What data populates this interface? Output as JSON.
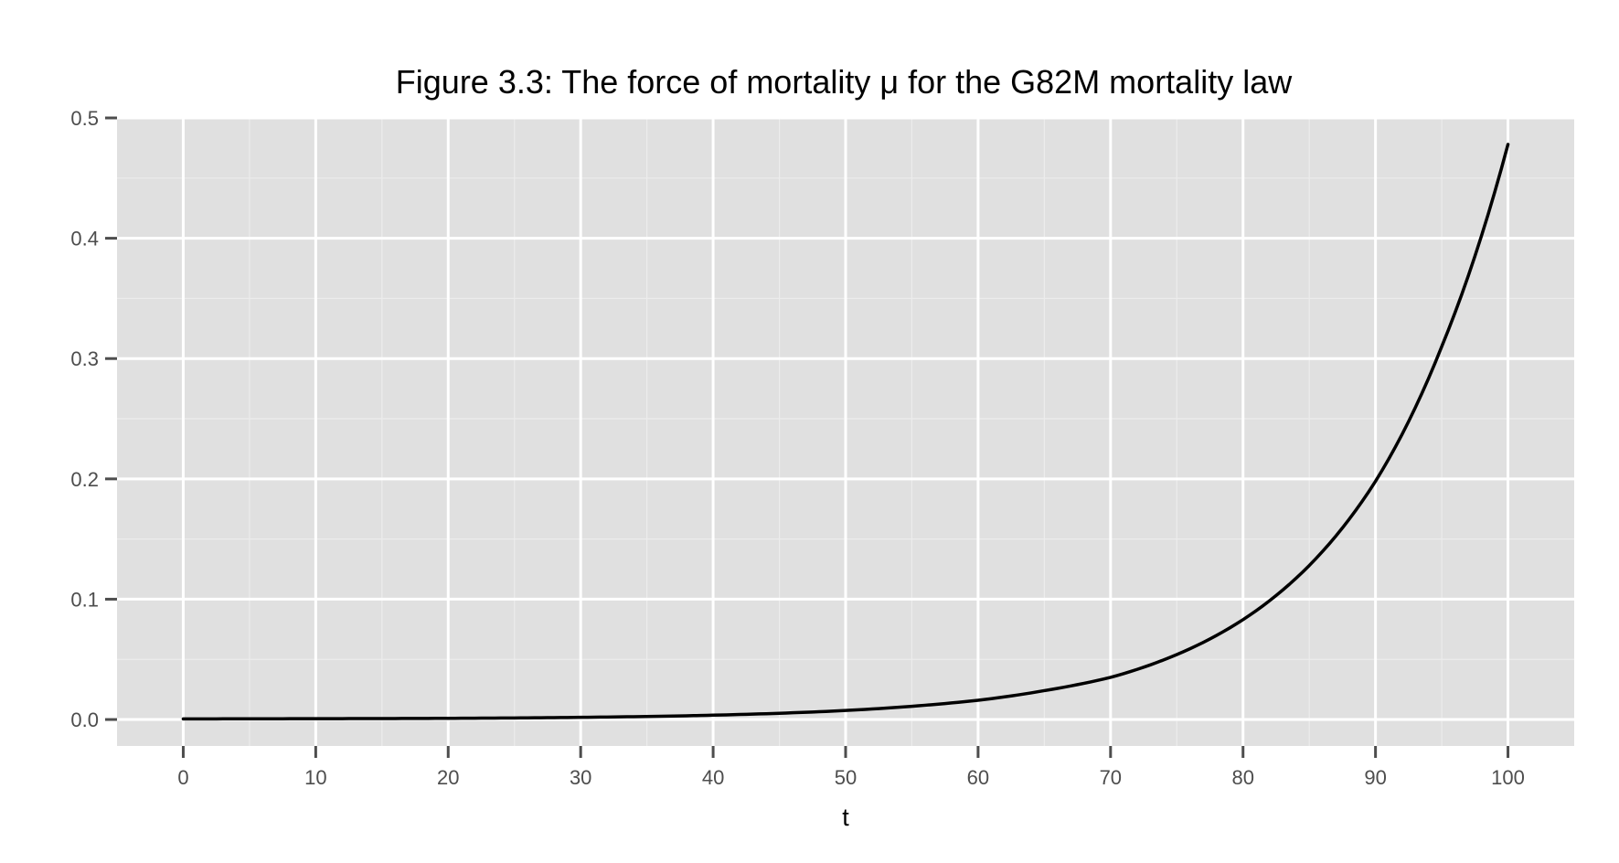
{
  "chart_data": {
    "type": "line",
    "title": "Figure 3.3: The force of mortality μ for the G82M mortality law",
    "xlabel": "t",
    "ylabel": "",
    "xlim": [
      -5,
      105
    ],
    "ylim": [
      -0.022,
      0.5
    ],
    "x_ticks": [
      0,
      10,
      20,
      30,
      40,
      50,
      60,
      70,
      80,
      90,
      100
    ],
    "x_tick_labels": [
      "0",
      "10",
      "20",
      "30",
      "40",
      "50",
      "60",
      "70",
      "80",
      "90",
      "100"
    ],
    "y_ticks": [
      0.0,
      0.1,
      0.2,
      0.3,
      0.4,
      0.5
    ],
    "y_tick_labels": [
      "0.0",
      "0.1",
      "0.2",
      "0.3",
      "0.4",
      "0.5"
    ],
    "grid": true,
    "colors": {
      "panel_background": "#e0e0e0",
      "grid_major": "#ffffff",
      "grid_minor": "#ececec",
      "line": "#000000",
      "tick": "#4d4d4d"
    },
    "series": [
      {
        "x": [
          0,
          5,
          10,
          15,
          20,
          25,
          30,
          35,
          40,
          45,
          50,
          55,
          60,
          65,
          70,
          75,
          80,
          85,
          90,
          95,
          100
        ],
        "values": [
          0.0005,
          0.0006,
          0.0007,
          0.0008,
          0.001,
          0.0013,
          0.0018,
          0.0025,
          0.0036,
          0.0052,
          0.0075,
          0.011,
          0.016,
          0.024,
          0.035,
          0.054,
          0.083,
          0.128,
          0.198,
          0.31,
          0.478
        ]
      }
    ]
  }
}
